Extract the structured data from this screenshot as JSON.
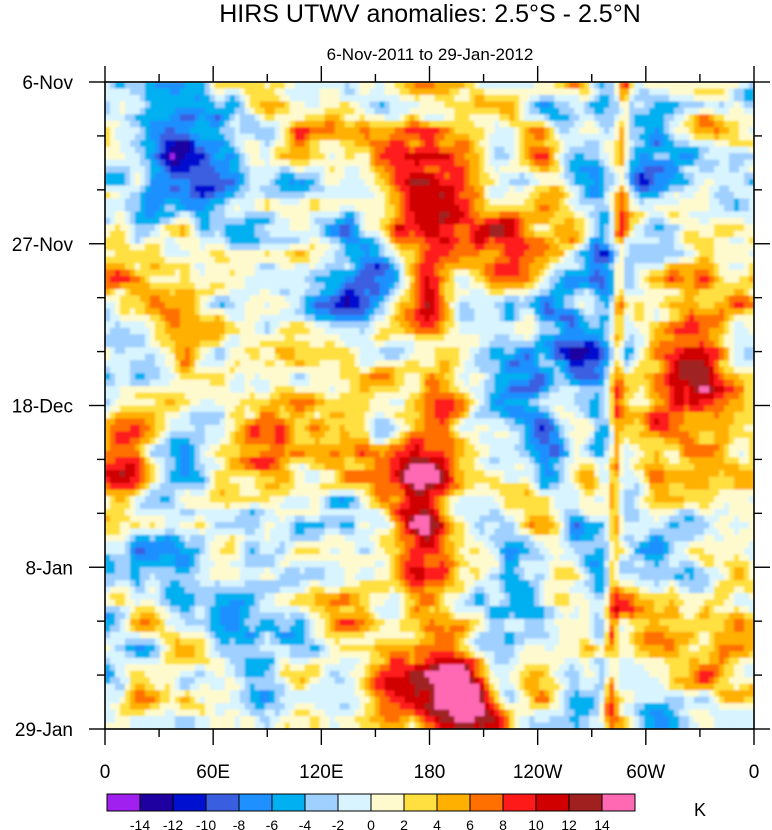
{
  "chart_data": {
    "type": "heatmap",
    "title": "HIRS UTWV anomalies: 2.5°S - 2.5°N",
    "subtitle": "6-Nov-2011 to 29-Jan-2012",
    "xlabel": "",
    "ylabel": "",
    "x_ticks": [
      "0",
      "60E",
      "120E",
      "180",
      "120W",
      "60W",
      "0"
    ],
    "x_tick_values": [
      0,
      60,
      120,
      180,
      240,
      300,
      360
    ],
    "xlim": [
      0,
      360
    ],
    "y_ticks": [
      "6-Nov",
      "27-Nov",
      "18-Dec",
      "8-Jan",
      "29-Jan"
    ],
    "y_tick_values": [
      0,
      21,
      42,
      63,
      84
    ],
    "ylim": [
      0,
      84
    ],
    "colorbar": {
      "label": "K",
      "levels": [
        "-14",
        "-12",
        "-10",
        "-8",
        "-6",
        "-4",
        "-2",
        "0",
        "2",
        "4",
        "6",
        "8",
        "10",
        "12",
        "14"
      ],
      "level_values": [
        -14,
        -12,
        -10,
        -8,
        -6,
        -4,
        -2,
        0,
        2,
        4,
        6,
        8,
        10,
        12,
        14
      ],
      "colors": [
        "#a020f0",
        "#1e00a0",
        "#0010d0",
        "#3a5ee0",
        "#1e90ff",
        "#00b0f0",
        "#a0d0ff",
        "#d8f4ff",
        "#fffacd",
        "#ffe040",
        "#ffb000",
        "#ff7000",
        "#ff1a1a",
        "#d00000",
        "#a02020",
        "#ff69b4"
      ]
    },
    "features": [
      {
        "name": "negative anomaly cluster",
        "lon": 40,
        "day": 12,
        "value": -11
      },
      {
        "name": "negative anomaly cluster",
        "lon": 60,
        "day": 14,
        "value": -9
      },
      {
        "name": "positive anomaly band",
        "lon": 175,
        "day": 50,
        "value": 13
      },
      {
        "name": "positive anomaly band",
        "lon": 180,
        "day": 80,
        "value": 14
      },
      {
        "name": "positive anomaly",
        "lon": 175,
        "day": 16,
        "value": 12
      },
      {
        "name": "positive anomaly",
        "lon": 330,
        "day": 40,
        "value": 10
      },
      {
        "name": "positive anomaly",
        "lon": 5,
        "day": 55,
        "value": 10
      },
      {
        "name": "narrow positive ridge",
        "lon": 286,
        "day": 45,
        "value": 10
      },
      {
        "name": "negative streak",
        "lon": 255,
        "day": 35,
        "value": -6
      }
    ]
  }
}
